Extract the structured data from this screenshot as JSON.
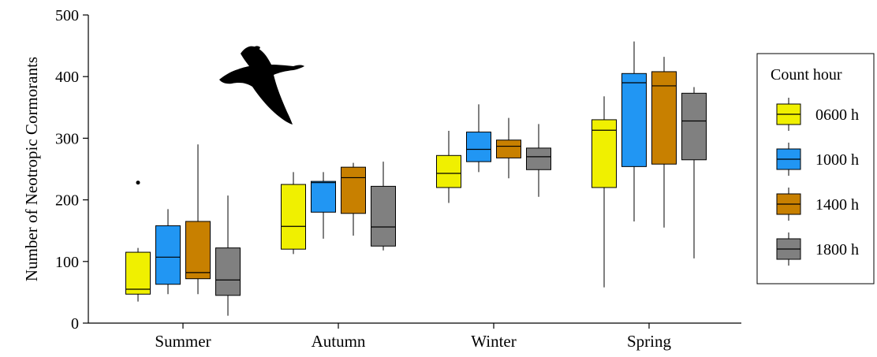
{
  "chart_data": {
    "type": "box",
    "ylabel": "Number of Neotropic Cormorants",
    "ylim": [
      0,
      500
    ],
    "yticks": [
      0,
      100,
      200,
      300,
      400,
      500
    ],
    "grid": false,
    "legend_position": "right",
    "legend_title": "Count hour",
    "categories": [
      "Summer",
      "Autumn",
      "Winter",
      "Spring"
    ],
    "series": [
      {
        "name": "0600 h",
        "color": "#f0f000",
        "boxes": [
          {
            "min": 35,
            "q1": 47,
            "median": 55,
            "q3": 115,
            "max": 122,
            "outliers": [
              228
            ]
          },
          {
            "min": 112,
            "q1": 120,
            "median": 157,
            "q3": 225,
            "max": 245,
            "outliers": []
          },
          {
            "min": 195,
            "q1": 220,
            "median": 243,
            "q3": 272,
            "max": 312,
            "outliers": []
          },
          {
            "min": 58,
            "q1": 220,
            "median": 313,
            "q3": 330,
            "max": 368,
            "outliers": []
          }
        ]
      },
      {
        "name": "1000 h",
        "color": "#2196f3",
        "boxes": [
          {
            "min": 47,
            "q1": 63,
            "median": 107,
            "q3": 158,
            "max": 185,
            "outliers": []
          },
          {
            "min": 137,
            "q1": 180,
            "median": 228,
            "q3": 230,
            "max": 245,
            "outliers": []
          },
          {
            "min": 245,
            "q1": 262,
            "median": 282,
            "q3": 310,
            "max": 355,
            "outliers": []
          },
          {
            "min": 165,
            "q1": 254,
            "median": 390,
            "q3": 405,
            "max": 457,
            "outliers": []
          }
        ]
      },
      {
        "name": "1400 h",
        "color": "#c88000",
        "boxes": [
          {
            "min": 47,
            "q1": 72,
            "median": 82,
            "q3": 165,
            "max": 290,
            "outliers": []
          },
          {
            "min": 142,
            "q1": 178,
            "median": 236,
            "q3": 253,
            "max": 260,
            "outliers": []
          },
          {
            "min": 235,
            "q1": 268,
            "median": 287,
            "q3": 297,
            "max": 333,
            "outliers": []
          },
          {
            "min": 155,
            "q1": 258,
            "median": 385,
            "q3": 408,
            "max": 432,
            "outliers": []
          }
        ]
      },
      {
        "name": "1800 h",
        "color": "#808080",
        "boxes": [
          {
            "min": 12,
            "q1": 45,
            "median": 70,
            "q3": 122,
            "max": 207,
            "outliers": []
          },
          {
            "min": 118,
            "q1": 125,
            "median": 156,
            "q3": 222,
            "max": 262,
            "outliers": []
          },
          {
            "min": 205,
            "q1": 249,
            "median": 270,
            "q3": 284,
            "max": 323,
            "outliers": []
          },
          {
            "min": 105,
            "q1": 265,
            "median": 328,
            "q3": 373,
            "max": 383,
            "outliers": []
          }
        ]
      }
    ],
    "annotations": [
      {
        "type": "image",
        "name": "cormorant-silhouette"
      }
    ]
  }
}
